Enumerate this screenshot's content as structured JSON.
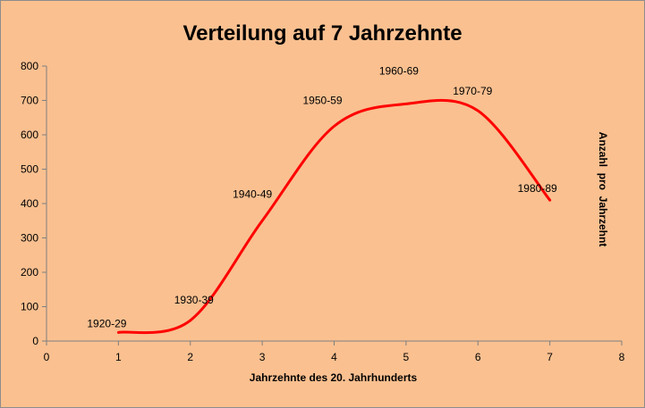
{
  "chart_data": {
    "type": "line",
    "title": "Verteilung auf 7 Jahrzehnte",
    "xlabel": "Jahrzehnte des 20. Jahrhunderts",
    "ylabel": "Anzahl  pro  Jahrzehnt",
    "xlim": [
      0,
      8
    ],
    "ylim": [
      0,
      800
    ],
    "x_ticks": [
      0,
      1,
      2,
      3,
      4,
      5,
      6,
      7,
      8
    ],
    "y_ticks": [
      0,
      100,
      200,
      300,
      400,
      500,
      600,
      700,
      800
    ],
    "grid": false,
    "legend": "none",
    "smoothed": true,
    "series": [
      {
        "color": "#ff0000",
        "x": [
          1,
          2,
          3,
          4,
          5,
          6,
          7
        ],
        "y": [
          25,
          60,
          350,
          625,
          690,
          670,
          410
        ],
        "point_labels": [
          "1920-29",
          "1930-39",
          "1940-49",
          "1950-59",
          "1960-69",
          "1970-79",
          "1980-89"
        ]
      }
    ]
  },
  "colors": {
    "background": "#fac090",
    "line": "#ff0000",
    "axis": "#7f7f7f"
  }
}
